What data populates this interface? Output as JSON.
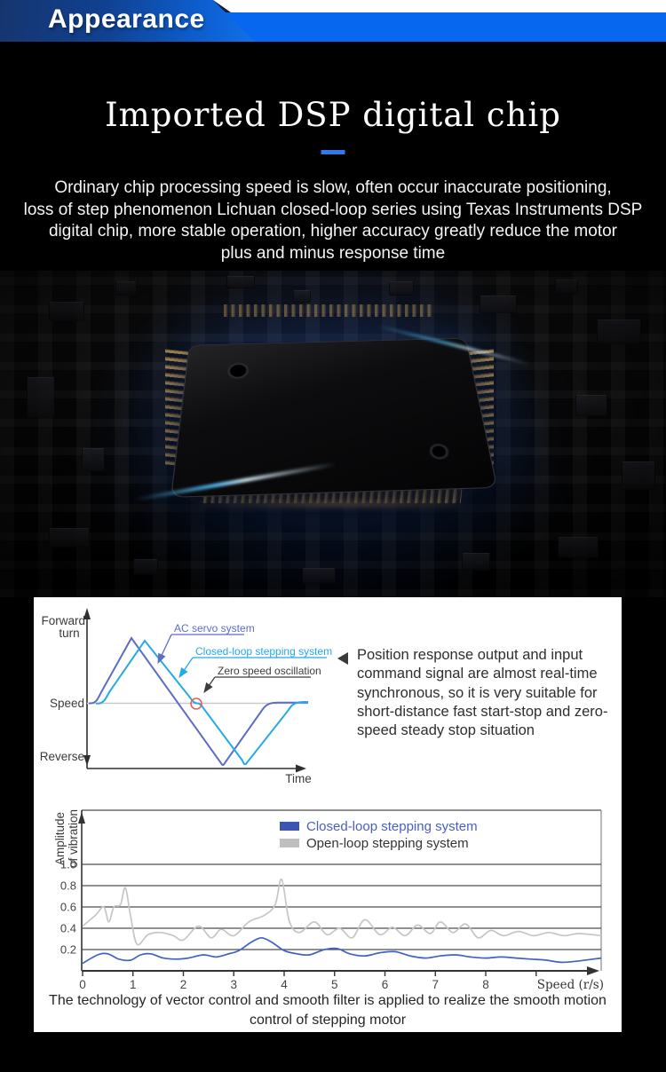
{
  "header": {
    "title": "Appearance"
  },
  "hero": {
    "title": "Imported DSP digital chip",
    "lines": [
      "Ordinary chip processing speed is slow, often occur inaccurate positioning,",
      "loss of step phenomenon Lichuan closed-loop series using Texas Instruments DSP",
      "digital chip, more stable operation, higher accuracy greatly reduce the motor",
      "plus and minus response time"
    ]
  },
  "panel1": {
    "chart1_labels": {
      "forward": "Forward",
      "turn": "turn",
      "speed": "Speed",
      "reverse": "Reverse",
      "time": "Time"
    },
    "annotations": {
      "servo": "AC servo system",
      "closed": "Closed-loop stepping system",
      "zero": "Zero speed oscillation"
    },
    "note_lines": [
      "Position response output and input",
      "command signal are almost real-time",
      "synchronous, so it is very suitable for",
      "short-distance fast start-stop and zero-",
      "speed steady stop situation"
    ],
    "caption_lines": [
      "The technology of vector control and smooth filter is applied to realize the smooth motion",
      "control of stepping motor"
    ]
  },
  "colors": {
    "accent_blue": "#0767ef",
    "underline_blue": "#2b7ce9",
    "servo_purple": "#5d6dc3",
    "stepper_cyan": "#25a9e9",
    "zero_red": "#e06060",
    "closed_curve_blue": "#4161c4",
    "open_curve_gray": "#c6c6c6"
  },
  "chart_data": [
    {
      "type": "line",
      "y_axis_labels": [
        "Forward turn",
        "Speed",
        "Reverse"
      ],
      "xlabel": "Time",
      "series": [
        {
          "name": "AC servo system",
          "color": "#5d6dc3",
          "shape": "triangular speed profile: ramps from zero to positive peak, crosses zero, negative peak, returns to zero"
        },
        {
          "name": "Closed-loop stepping system",
          "color": "#25a9e9",
          "shape": "triangular speed profile slightly delayed; flattens briefly at the zero crossing (zero speed oscillation), negative peak, returns to zero"
        }
      ],
      "annotations": [
        "AC servo system",
        "Closed-loop stepping system",
        "Zero speed oscillation"
      ],
      "grid": false
    },
    {
      "type": "line",
      "ylabel": "Amplitude of vibration",
      "ylabel_lines": [
        "Amplitude",
        "of vibration"
      ],
      "xlabel": "Speed (r/s)",
      "x_ticks": [
        0,
        1,
        2,
        3,
        4,
        5,
        6,
        7,
        8
      ],
      "y_ticks": [
        0.2,
        0.4,
        0.6,
        0.8,
        1.0
      ],
      "xlim": [
        0,
        10.3
      ],
      "ylim": [
        0,
        1.5
      ],
      "grid": true,
      "legend_position": "top-center",
      "series": [
        {
          "name": "Closed-loop stepping system",
          "color": "#4161c4",
          "points": [
            [
              0,
              0.07
            ],
            [
              0.3,
              0.15
            ],
            [
              0.5,
              0.16
            ],
            [
              0.72,
              0.11
            ],
            [
              0.95,
              0.1
            ],
            [
              1.15,
              0.15
            ],
            [
              1.35,
              0.16
            ],
            [
              1.6,
              0.12
            ],
            [
              1.85,
              0.11
            ],
            [
              2.1,
              0.12
            ],
            [
              2.4,
              0.15
            ],
            [
              2.65,
              0.13
            ],
            [
              2.9,
              0.16
            ],
            [
              3.1,
              0.19
            ],
            [
              3.35,
              0.27
            ],
            [
              3.55,
              0.31
            ],
            [
              3.75,
              0.27
            ],
            [
              4.0,
              0.19
            ],
            [
              4.25,
              0.16
            ],
            [
              4.5,
              0.15
            ],
            [
              4.8,
              0.2
            ],
            [
              5.05,
              0.21
            ],
            [
              5.3,
              0.16
            ],
            [
              5.6,
              0.14
            ],
            [
              5.9,
              0.17
            ],
            [
              6.2,
              0.18
            ],
            [
              6.5,
              0.14
            ],
            [
              6.8,
              0.12
            ],
            [
              7.1,
              0.14
            ],
            [
              7.4,
              0.15
            ],
            [
              7.7,
              0.13
            ],
            [
              8.0,
              0.12
            ],
            [
              8.3,
              0.13
            ],
            [
              8.6,
              0.12
            ],
            [
              8.9,
              0.11
            ],
            [
              9.2,
              0.1
            ],
            [
              9.5,
              0.08
            ],
            [
              9.8,
              0.09
            ],
            [
              10.29,
              0.12
            ]
          ]
        },
        {
          "name": "Open-loop stepping system",
          "color": "#c6c6c6",
          "points": [
            [
              0,
              0.42
            ],
            [
              0.25,
              0.52
            ],
            [
              0.42,
              0.6
            ],
            [
              0.52,
              0.46
            ],
            [
              0.62,
              0.6
            ],
            [
              0.75,
              0.62
            ],
            [
              0.85,
              0.78
            ],
            [
              0.95,
              0.52
            ],
            [
              1.08,
              0.25
            ],
            [
              1.3,
              0.34
            ],
            [
              1.55,
              0.36
            ],
            [
              1.8,
              0.33
            ],
            [
              2.0,
              0.29
            ],
            [
              2.3,
              0.42
            ],
            [
              2.55,
              0.31
            ],
            [
              2.75,
              0.39
            ],
            [
              3.0,
              0.33
            ],
            [
              3.3,
              0.46
            ],
            [
              3.6,
              0.52
            ],
            [
              3.82,
              0.62
            ],
            [
              3.95,
              0.86
            ],
            [
              4.1,
              0.47
            ],
            [
              4.3,
              0.36
            ],
            [
              4.6,
              0.46
            ],
            [
              4.85,
              0.34
            ],
            [
              5.1,
              0.4
            ],
            [
              5.35,
              0.31
            ],
            [
              5.6,
              0.48
            ],
            [
              5.9,
              0.34
            ],
            [
              6.15,
              0.41
            ],
            [
              6.4,
              0.33
            ],
            [
              6.65,
              0.43
            ],
            [
              6.9,
              0.35
            ],
            [
              7.1,
              0.46
            ],
            [
              7.35,
              0.36
            ],
            [
              7.6,
              0.44
            ],
            [
              7.85,
              0.31
            ],
            [
              8.1,
              0.38
            ],
            [
              8.35,
              0.33
            ],
            [
              8.65,
              0.37
            ],
            [
              8.95,
              0.33
            ],
            [
              9.25,
              0.36
            ],
            [
              9.55,
              0.33
            ],
            [
              9.85,
              0.35
            ],
            [
              10.29,
              0.33
            ]
          ]
        }
      ]
    }
  ]
}
